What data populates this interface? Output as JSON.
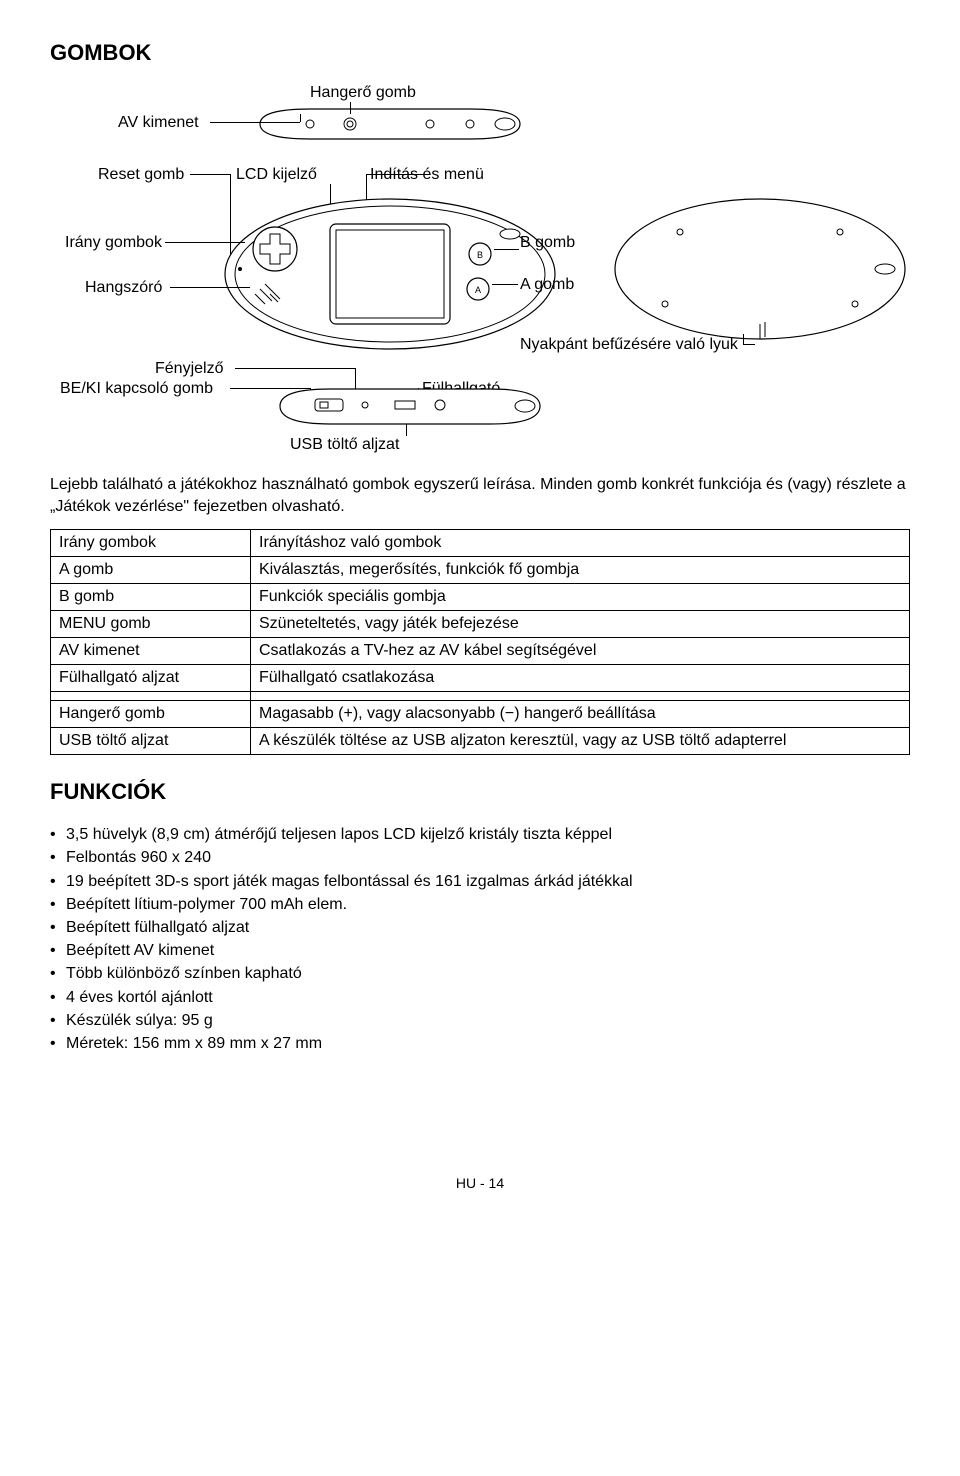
{
  "section1_title": "GOMBOK",
  "labels": {
    "av_out": "AV kimenet",
    "volume": "Hangerő gomb",
    "reset": "Reset gomb",
    "lcd": "LCD kijelző",
    "start_menu": "Indítás és menü",
    "dir_buttons": "Irány gombok",
    "speaker": "Hangszóró",
    "b_button": "B gomb",
    "a_button": "A gomb",
    "led": "Fényjelző",
    "power": "BE/KI kapcsoló gomb",
    "lanyard": "Nyakpánt befűzésére való lyuk",
    "earphone": "Fülhallgató",
    "usb": "USB töltő aljzat"
  },
  "intro": "Lejebb található a játékokhoz használható gombok egyszerű leírása. Minden gomb konkrét funkciója és (vagy) részlete a „Játékok vezérlése\" fejezetben olvasható.",
  "table": {
    "rows_top": [
      {
        "l": "Irány gombok",
        "r": "Irányításhoz való gombok"
      },
      {
        "l": "A gomb",
        "r": "Kiválasztás, megerősítés, funkciók fő gombja"
      },
      {
        "l": "B gomb",
        "r": "Funkciók speciális gombja"
      },
      {
        "l": "MENU gomb",
        "r": "Szüneteltetés, vagy játék befejezése"
      },
      {
        "l": "AV kimenet",
        "r": "Csatlakozás a TV-hez az AV kábel segítségével"
      },
      {
        "l": "Fülhallgató aljzat",
        "r": "Fülhallgató csatlakozása"
      }
    ],
    "rows_bottom": [
      {
        "l": "Hangerő gomb",
        "r": "Magasabb (+), vagy alacsonyabb (−) hangerő beállítása"
      },
      {
        "l": "USB töltő aljzat",
        "r": "A készülék töltése az USB aljzaton keresztül, vagy az USB töltő adapterrel"
      }
    ]
  },
  "section2_title": "FUNKCIÓK",
  "features": [
    "3,5 hüvelyk (8,9 cm) átmérőjű teljesen lapos LCD kijelző kristály tiszta képpel",
    "Felbontás 960 x 240",
    "19 beépített 3D-s sport játék magas felbontással és 161 izgalmas árkád játékkal",
    "Beépített lítium-polymer 700 mAh elem.",
    "Beépített fülhallgató aljzat",
    "Beépített AV kimenet",
    "Több különböző színben kapható",
    "4 éves kortól ajánlott",
    "Készülék súlya: 95 g",
    "Méretek: 156 mm x 89 mm x 27 mm"
  ],
  "footer": "HU - 14",
  "diagram_style": {
    "stroke": "#000000",
    "stroke_width": 1.2,
    "fill": "#ffffff",
    "label_fontsize": 16
  }
}
